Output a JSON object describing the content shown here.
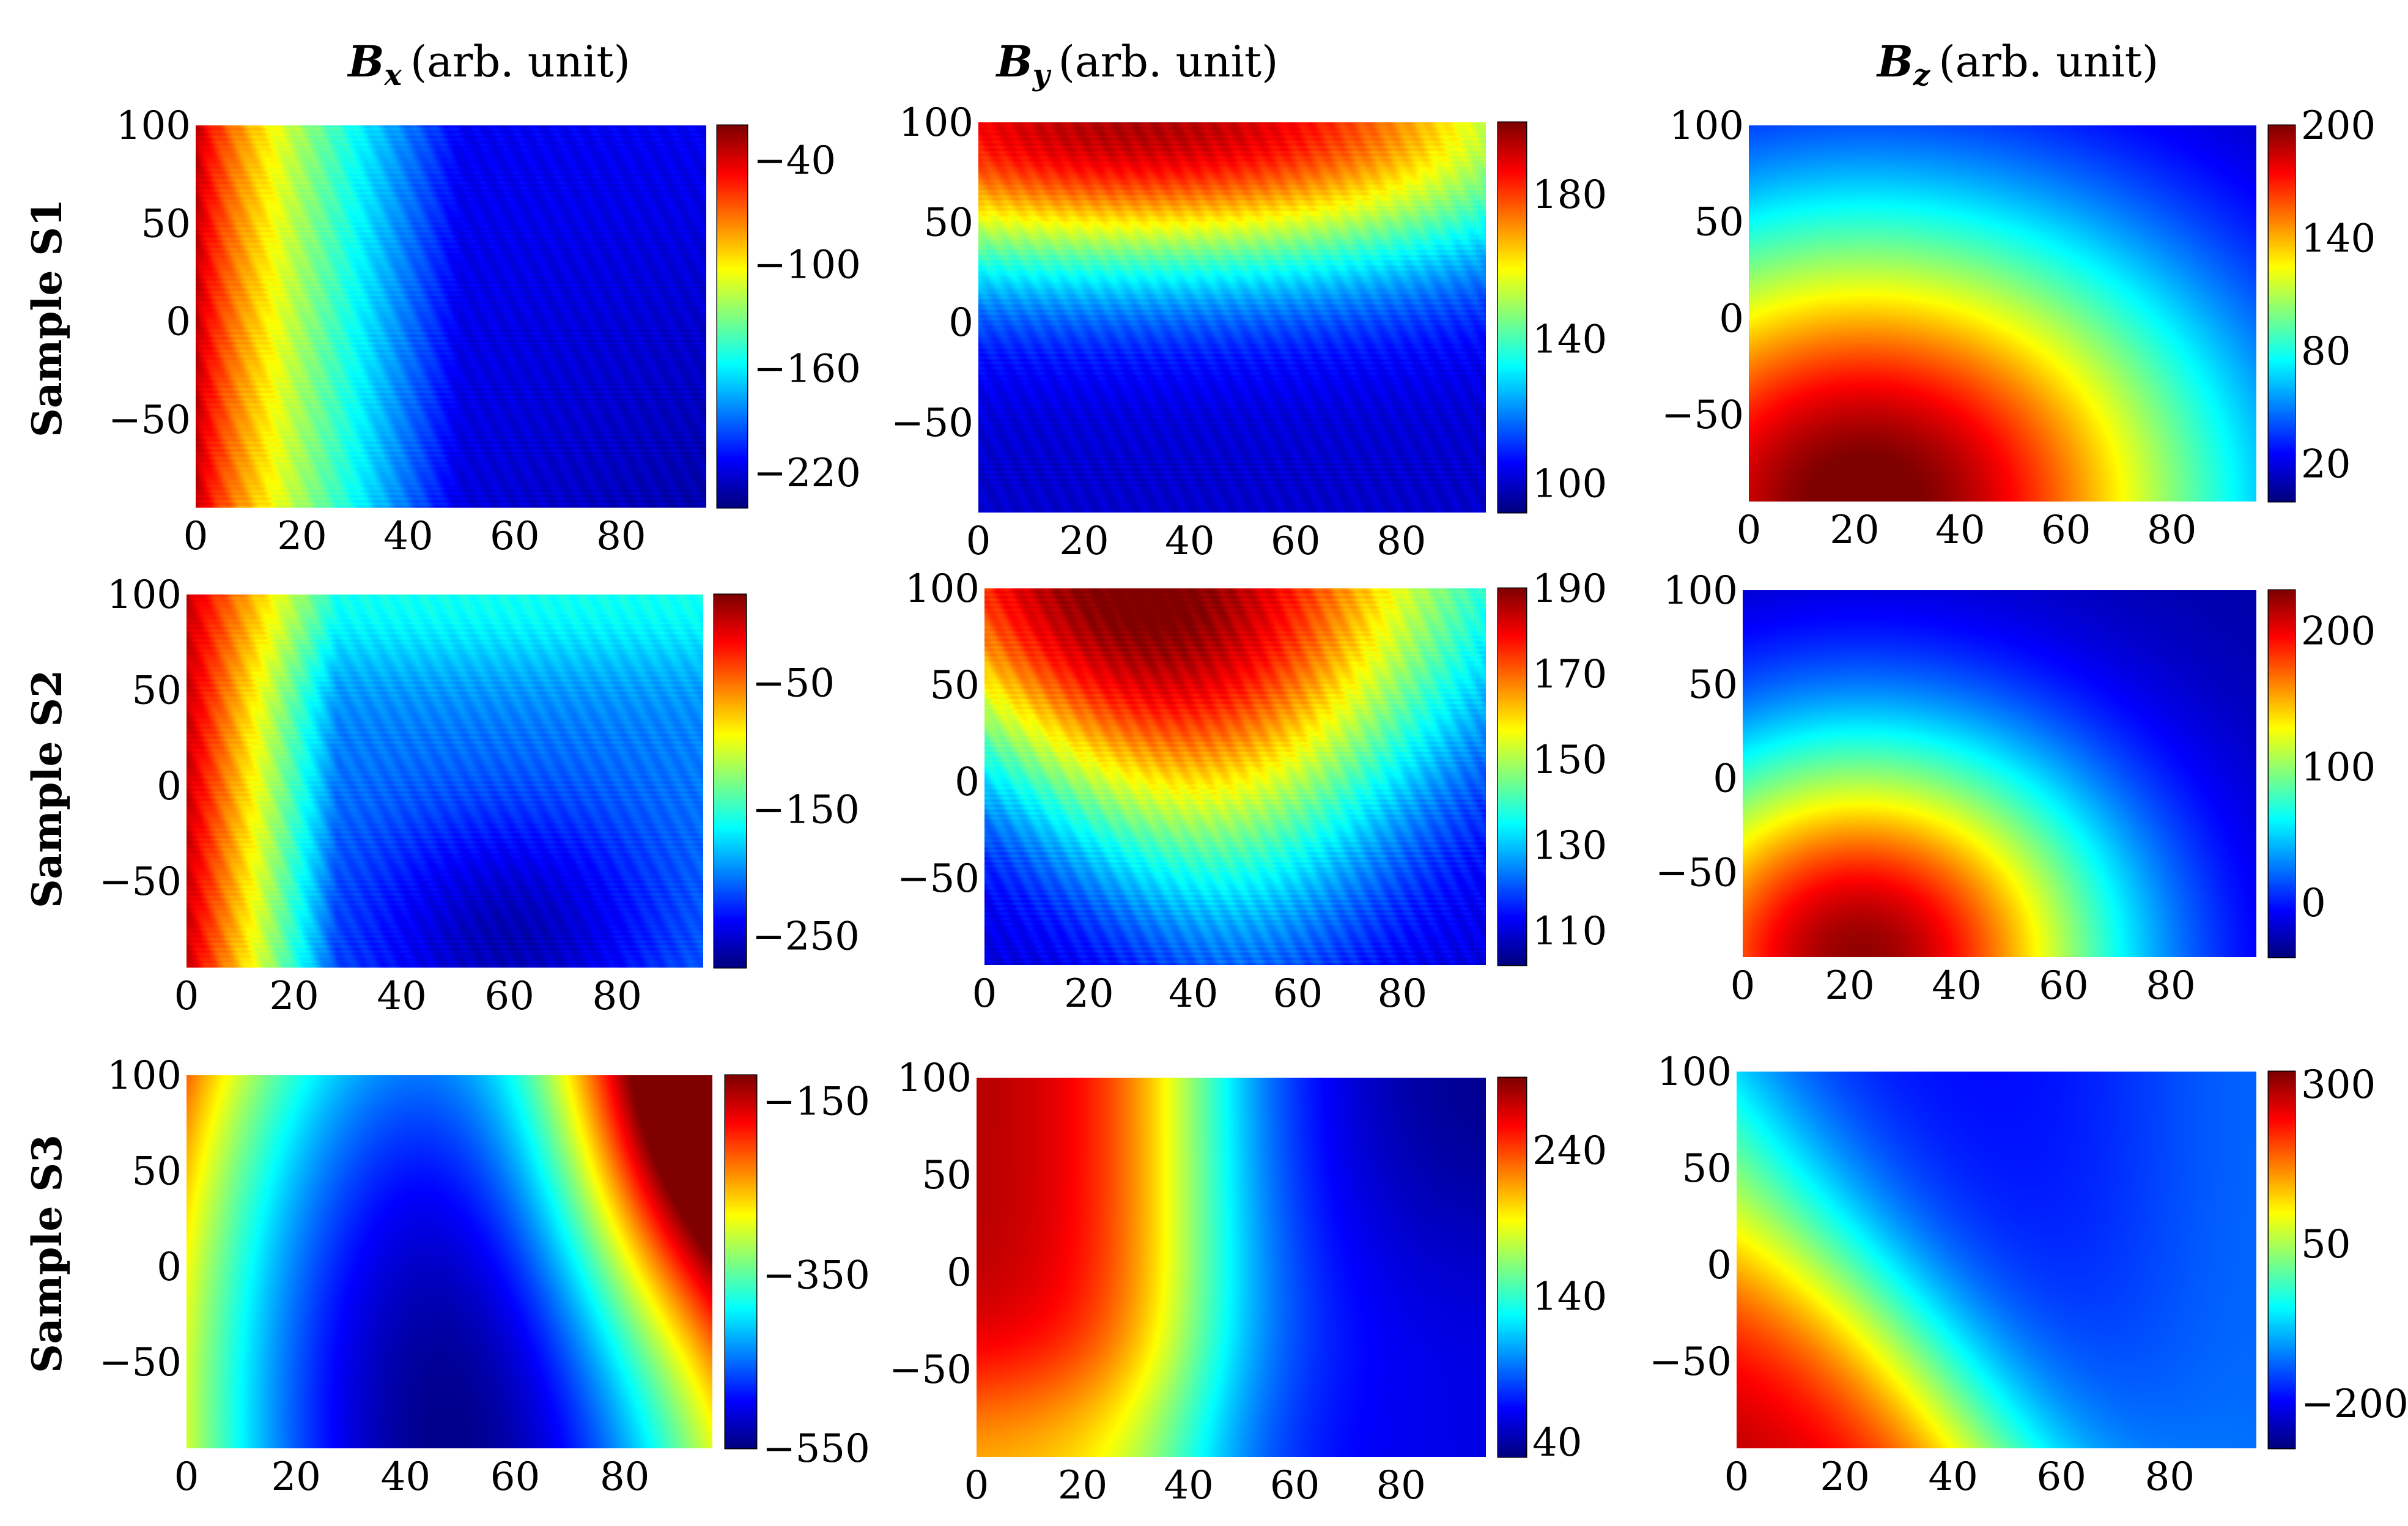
{
  "chart_data": {
    "type": "heatmap",
    "colormap": "jet",
    "column_headers": [
      {
        "symbol": "B",
        "subscript": "x",
        "unit": "(arb. unit)"
      },
      {
        "symbol": "B",
        "subscript": "y",
        "unit": "(arb. unit)"
      },
      {
        "symbol": "B",
        "subscript": "z",
        "unit": "(arb. unit)"
      }
    ],
    "row_labels": [
      "Sample S1",
      "Sample S2",
      "Sample S3"
    ],
    "xticks": [
      "0",
      "20",
      "40",
      "60",
      "80"
    ],
    "yticks": [
      "100",
      "50",
      "0",
      "−50"
    ],
    "xlim": [
      0,
      96
    ],
    "ylim": [
      -95,
      100
    ],
    "panels": [
      {
        "id": "S1-Bx",
        "row": "Sample S1",
        "component": "Bx",
        "field": "s1bx",
        "clim": [
          -240,
          -20
        ],
        "cbar_ticks": [
          "−40",
          "−100",
          "−160",
          "−220"
        ],
        "cbar_values": [
          -40,
          -100,
          -160,
          -220
        ]
      },
      {
        "id": "S1-By",
        "row": "Sample S1",
        "component": "By",
        "field": "s1by",
        "clim": [
          92,
          200
        ],
        "cbar_ticks": [
          "180",
          "140",
          "100"
        ],
        "cbar_values": [
          180,
          140,
          100
        ]
      },
      {
        "id": "S1-Bz",
        "row": "Sample S1",
        "component": "Bz",
        "field": "s1bz",
        "clim": [
          0,
          200
        ],
        "cbar_ticks": [
          "200",
          "140",
          "80",
          "20"
        ],
        "cbar_values": [
          200,
          140,
          80,
          20
        ]
      },
      {
        "id": "S2-Bx",
        "row": "Sample S2",
        "component": "Bx",
        "field": "s2bx",
        "clim": [
          -275,
          20
        ],
        "cbar_ticks": [
          "−50",
          "−150",
          "−250"
        ],
        "cbar_values": [
          -50,
          -150,
          -250
        ]
      },
      {
        "id": "S2-By",
        "row": "Sample S2",
        "component": "By",
        "field": "s2by",
        "clim": [
          102,
          190
        ],
        "cbar_ticks": [
          "190",
          "170",
          "150",
          "130",
          "110"
        ],
        "cbar_values": [
          190,
          170,
          150,
          130,
          110
        ]
      },
      {
        "id": "S2-Bz",
        "row": "Sample S2",
        "component": "Bz",
        "field": "s2bz",
        "clim": [
          -40,
          230
        ],
        "cbar_ticks": [
          "200",
          "100",
          "0"
        ],
        "cbar_values": [
          200,
          100,
          0
        ]
      },
      {
        "id": "S3-Bx",
        "row": "Sample S3",
        "component": "Bx",
        "field": "s3bx",
        "clim": [
          -550,
          -120
        ],
        "cbar_ticks": [
          "−150",
          "−350",
          "−550"
        ],
        "cbar_values": [
          -150,
          -350,
          -550
        ]
      },
      {
        "id": "S3-By",
        "row": "Sample S3",
        "component": "By",
        "field": "s3by",
        "clim": [
          30,
          290
        ],
        "cbar_ticks": [
          "240",
          "140",
          "40"
        ],
        "cbar_values": [
          240,
          140,
          40
        ]
      },
      {
        "id": "S3-Bz",
        "row": "Sample S3",
        "component": "Bz",
        "field": "s3bz",
        "clim": [
          -270,
          320
        ],
        "cbar_ticks": [
          "300",
          "50",
          "−200"
        ],
        "cbar_values": [
          300,
          50,
          -200
        ]
      }
    ]
  }
}
